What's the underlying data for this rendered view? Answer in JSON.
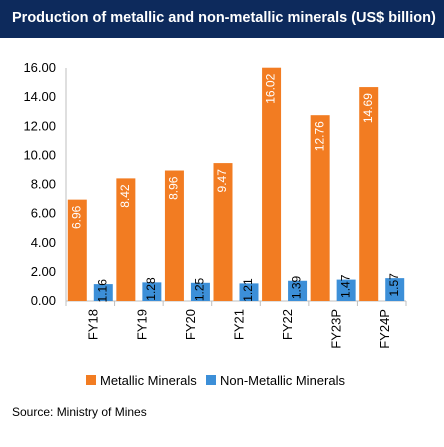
{
  "title": "Production of metallic and non-metallic minerals (US$ billion)",
  "source": "Source: Ministry of Mines",
  "colors": {
    "title_bg": "#0d2a5c",
    "metallic": "#f27c22",
    "non_metallic": "#3c8fd8"
  },
  "chart_data": {
    "type": "bar",
    "title": "Production of metallic and non-metallic minerals (US$ billion)",
    "categories": [
      "FY18",
      "FY19",
      "FY20",
      "FY21",
      "FY22",
      "FY23P",
      "FY24P"
    ],
    "series": [
      {
        "name": "Metallic Minerals",
        "values": [
          6.96,
          8.42,
          8.96,
          9.47,
          16.02,
          12.76,
          14.69
        ]
      },
      {
        "name": "Non-Metallic Minerals",
        "values": [
          1.16,
          1.28,
          1.25,
          1.21,
          1.39,
          1.47,
          1.57
        ]
      }
    ],
    "labels": [
      [
        "6.96",
        "8.42",
        "8.96",
        "9.47",
        "16.02",
        "12.76",
        "14.69"
      ],
      [
        "1.16",
        "1.28",
        "1.25",
        "1.21",
        "1.39",
        "1.47",
        "1.57"
      ]
    ],
    "yticks": [
      "0.00",
      "2.00",
      "4.00",
      "6.00",
      "8.00",
      "10.00",
      "12.00",
      "14.00",
      "16.00"
    ],
    "ylim": [
      0,
      16
    ],
    "grid": false,
    "legend": "bottom"
  }
}
